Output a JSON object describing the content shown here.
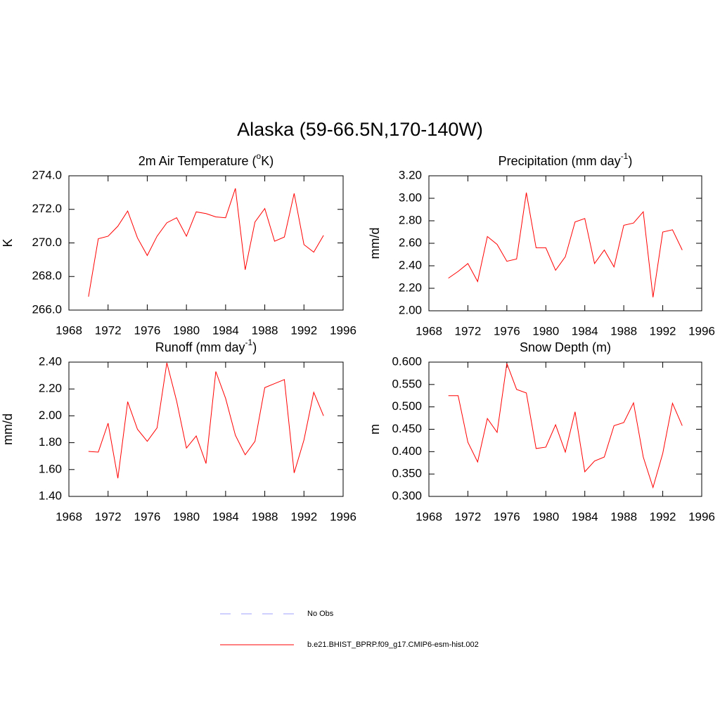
{
  "title": "Alaska (59-66.5N,170-140W)",
  "legend": [
    {
      "name": "No Obs",
      "color": "#a0a0ff",
      "dashed": true
    },
    {
      "name": "b.e21.BHIST_BPRP.f09_g17.CMIP6-esm-hist.002",
      "color": "#ff0000",
      "dashed": false
    }
  ],
  "chart_data": [
    {
      "type": "line",
      "title": [
        {
          "text": "2m Air Temperature ("
        },
        {
          "text": "o",
          "sup": true
        },
        {
          "text": "K)"
        }
      ],
      "y_label": "K",
      "x": [
        1970,
        1971,
        1972,
        1973,
        1974,
        1975,
        1976,
        1977,
        1978,
        1979,
        1980,
        1981,
        1982,
        1983,
        1984,
        1985,
        1986,
        1987,
        1988,
        1989,
        1990,
        1991,
        1992,
        1993,
        1994
      ],
      "values": [
        266.8,
        270.25,
        270.4,
        271.0,
        271.9,
        270.3,
        269.25,
        270.4,
        271.2,
        271.5,
        270.4,
        271.85,
        271.75,
        271.55,
        271.5,
        273.25,
        268.4,
        271.25,
        272.05,
        270.1,
        270.35,
        272.95,
        269.9,
        269.45,
        270.45
      ],
      "color": "#ff0000",
      "xlim": [
        1968,
        1996
      ],
      "xticks": [
        1968,
        1972,
        1976,
        1980,
        1984,
        1988,
        1992,
        1996
      ],
      "ylim": [
        266,
        274
      ],
      "yticks": [
        {
          "value": 266,
          "label": "266.0"
        },
        {
          "value": 268,
          "label": "268.0"
        },
        {
          "value": 270,
          "label": "270.0"
        },
        {
          "value": 272,
          "label": "272.0"
        },
        {
          "value": 274,
          "label": "274.0"
        }
      ]
    },
    {
      "type": "line",
      "title": [
        {
          "text": "Precipitation (mm day"
        },
        {
          "text": "-1",
          "sup": true
        },
        {
          "text": ")"
        }
      ],
      "y_label": "mm/d",
      "x": [
        1970,
        1971,
        1972,
        1973,
        1974,
        1975,
        1976,
        1977,
        1978,
        1979,
        1980,
        1981,
        1982,
        1983,
        1984,
        1985,
        1986,
        1987,
        1988,
        1989,
        1990,
        1991,
        1992,
        1993,
        1994
      ],
      "values": [
        2.29,
        2.35,
        2.42,
        2.26,
        2.66,
        2.59,
        2.44,
        2.46,
        3.05,
        2.56,
        2.56,
        2.36,
        2.48,
        2.79,
        2.82,
        2.42,
        2.54,
        2.39,
        2.76,
        2.78,
        2.88,
        2.12,
        2.7,
        2.72,
        2.54
      ],
      "color": "#ff0000",
      "xlim": [
        1968,
        1996
      ],
      "xticks": [
        1968,
        1972,
        1976,
        1980,
        1984,
        1988,
        1992,
        1996
      ],
      "ylim": [
        2.0,
        3.2
      ],
      "yticks": [
        {
          "value": 2.0,
          "label": "2.00"
        },
        {
          "value": 2.2,
          "label": "2.20"
        },
        {
          "value": 2.4,
          "label": "2.40"
        },
        {
          "value": 2.6,
          "label": "2.60"
        },
        {
          "value": 2.8,
          "label": "2.80"
        },
        {
          "value": 3.0,
          "label": "3.00"
        },
        {
          "value": 3.2,
          "label": "3.20"
        }
      ]
    },
    {
      "type": "line",
      "title": [
        {
          "text": "Runoff (mm day"
        },
        {
          "text": "-1",
          "sup": true
        },
        {
          "text": ")"
        }
      ],
      "y_label": "mm/d",
      "x": [
        1970,
        1971,
        1972,
        1973,
        1974,
        1975,
        1976,
        1977,
        1978,
        1979,
        1980,
        1981,
        1982,
        1983,
        1984,
        1985,
        1986,
        1987,
        1988,
        1989,
        1990,
        1991,
        1992,
        1993,
        1994
      ],
      "values": [
        1.735,
        1.73,
        1.945,
        1.535,
        2.105,
        1.9,
        1.81,
        1.91,
        2.395,
        2.11,
        1.76,
        1.85,
        1.645,
        2.33,
        2.13,
        1.855,
        1.71,
        1.81,
        2.21,
        2.24,
        2.27,
        1.575,
        1.82,
        2.175,
        2.0
      ],
      "color": "#ff0000",
      "xlim": [
        1968,
        1996
      ],
      "xticks": [
        1968,
        1972,
        1976,
        1980,
        1984,
        1988,
        1992,
        1996
      ],
      "ylim": [
        1.4,
        2.4
      ],
      "yticks": [
        {
          "value": 1.4,
          "label": "1.40"
        },
        {
          "value": 1.6,
          "label": "1.60"
        },
        {
          "value": 1.8,
          "label": "1.80"
        },
        {
          "value": 2.0,
          "label": "2.00"
        },
        {
          "value": 2.2,
          "label": "2.20"
        },
        {
          "value": 2.4,
          "label": "2.40"
        }
      ]
    },
    {
      "type": "line",
      "title": [
        {
          "text": "Snow Depth (m)"
        }
      ],
      "y_label": "m",
      "x": [
        1970,
        1971,
        1972,
        1973,
        1974,
        1975,
        1976,
        1977,
        1978,
        1979,
        1980,
        1981,
        1982,
        1983,
        1984,
        1985,
        1986,
        1987,
        1988,
        1989,
        1990,
        1991,
        1992,
        1993,
        1994
      ],
      "values": [
        0.525,
        0.525,
        0.421,
        0.377,
        0.474,
        0.443,
        0.597,
        0.539,
        0.531,
        0.407,
        0.41,
        0.46,
        0.399,
        0.489,
        0.355,
        0.379,
        0.388,
        0.458,
        0.465,
        0.509,
        0.388,
        0.32,
        0.396,
        0.508,
        0.458
      ],
      "color": "#ff0000",
      "xlim": [
        1968,
        1996
      ],
      "xticks": [
        1968,
        1972,
        1976,
        1980,
        1984,
        1988,
        1992,
        1996
      ],
      "ylim": [
        0.3,
        0.6
      ],
      "yticks": [
        {
          "value": 0.3,
          "label": "0.300"
        },
        {
          "value": 0.35,
          "label": "0.350"
        },
        {
          "value": 0.4,
          "label": "0.400"
        },
        {
          "value": 0.45,
          "label": "0.450"
        },
        {
          "value": 0.5,
          "label": "0.500"
        },
        {
          "value": 0.55,
          "label": "0.550"
        },
        {
          "value": 0.6,
          "label": "0.600"
        }
      ]
    }
  ]
}
